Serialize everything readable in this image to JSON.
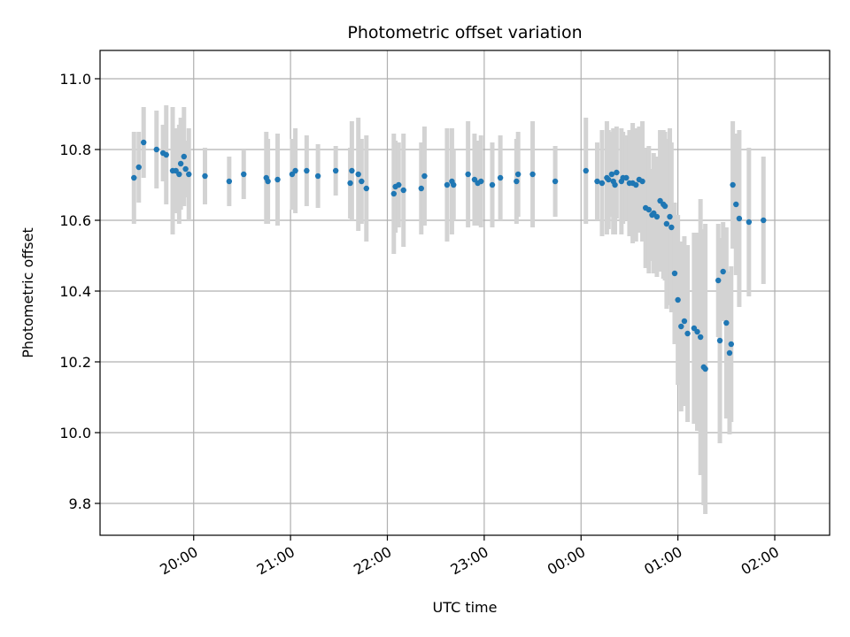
{
  "chart_data": {
    "type": "scatter",
    "title": "Photometric offset variation",
    "xlabel": "UTC time",
    "ylabel": "Photometric offset",
    "grid": true,
    "legend": "none",
    "x_axis_kind": "time",
    "xlim": [
      "19:02",
      "02:34"
    ],
    "ylim": [
      9.71,
      11.08
    ],
    "x_ticks": [
      "20:00",
      "21:00",
      "22:00",
      "23:00",
      "00:00",
      "01:00",
      "02:00"
    ],
    "y_ticks": [
      9.8,
      10.0,
      10.2,
      10.4,
      10.6,
      10.8,
      11.0
    ],
    "colors": {
      "points": "#1f77b4",
      "error_bars": "#d3d3d3"
    },
    "series": [
      {
        "x": [
          "19:23",
          "19:26",
          "19:29",
          "19:37",
          "19:41",
          "19:43",
          "19:47",
          "19:49",
          "19:51",
          "19:52",
          "19:54",
          "19:55",
          "19:57",
          "20:07",
          "20:22",
          "20:31",
          "20:45",
          "20:46",
          "20:52",
          "21:01",
          "21:03",
          "21:10",
          "21:17",
          "21:28",
          "21:37",
          "21:38",
          "21:42",
          "21:44",
          "21:47",
          "22:04",
          "22:05",
          "22:07",
          "22:10",
          "22:21",
          "22:23",
          "22:37",
          "22:40",
          "22:41",
          "22:50",
          "22:54",
          "22:56",
          "22:58",
          "23:05",
          "23:10",
          "23:20",
          "23:21",
          "23:30",
          "23:44",
          "00:03",
          "00:10",
          "00:13",
          "00:16",
          "00:17",
          "00:19",
          "00:20",
          "00:21",
          "00:22",
          "00:25",
          "00:26",
          "00:28",
          "00:30",
          "00:32",
          "00:34",
          "00:36",
          "00:38",
          "00:40",
          "00:42",
          "00:44",
          "00:45",
          "00:47",
          "00:49",
          "00:51",
          "00:52",
          "00:53",
          "00:55",
          "00:56",
          "00:58",
          "01:00",
          "01:02",
          "01:04",
          "01:06",
          "01:10",
          "01:12",
          "01:14",
          "01:16",
          "01:17",
          "01:25",
          "01:26",
          "01:28",
          "01:30",
          "01:32",
          "01:33",
          "01:34",
          "01:36",
          "01:38",
          "01:44",
          "01:53"
        ],
        "y": [
          10.72,
          10.75,
          10.82,
          10.8,
          10.79,
          10.785,
          10.74,
          10.74,
          10.73,
          10.76,
          10.78,
          10.745,
          10.73,
          10.725,
          10.71,
          10.73,
          10.72,
          10.71,
          10.715,
          10.73,
          10.74,
          10.74,
          10.725,
          10.74,
          10.705,
          10.74,
          10.73,
          10.71,
          10.69,
          10.675,
          10.695,
          10.7,
          10.685,
          10.69,
          10.725,
          10.7,
          10.71,
          10.7,
          10.73,
          10.715,
          10.705,
          10.71,
          10.7,
          10.72,
          10.71,
          10.73,
          10.73,
          10.71,
          10.74,
          10.71,
          10.705,
          10.72,
          10.715,
          10.73,
          10.71,
          10.7,
          10.735,
          10.71,
          10.72,
          10.72,
          10.705,
          10.705,
          10.7,
          10.715,
          10.71,
          10.635,
          10.63,
          10.615,
          10.62,
          10.61,
          10.655,
          10.645,
          10.64,
          10.59,
          10.61,
          10.58,
          10.45,
          10.375,
          10.3,
          10.315,
          10.28,
          10.295,
          10.285,
          10.27,
          10.185,
          10.18,
          10.43,
          10.26,
          10.455,
          10.31,
          10.225,
          10.25,
          10.7,
          10.645,
          10.605,
          10.595,
          10.6
        ],
        "err": [
          0.13,
          0.1,
          0.1,
          0.11,
          0.08,
          0.14,
          0.18,
          0.12,
          0.14,
          0.13,
          0.14,
          0.08,
          0.13,
          0.08,
          0.07,
          0.07,
          0.13,
          0.12,
          0.13,
          0.1,
          0.12,
          0.1,
          0.09,
          0.07,
          0.1,
          0.14,
          0.16,
          0.12,
          0.15,
          0.17,
          0.13,
          0.12,
          0.16,
          0.13,
          0.14,
          0.16,
          0.15,
          0.1,
          0.15,
          0.13,
          0.12,
          0.13,
          0.12,
          0.12,
          0.12,
          0.12,
          0.15,
          0.1,
          0.15,
          0.11,
          0.15,
          0.16,
          0.14,
          0.12,
          0.15,
          0.14,
          0.13,
          0.15,
          0.13,
          0.12,
          0.15,
          0.17,
          0.16,
          0.15,
          0.17,
          0.17,
          0.18,
          0.13,
          0.17,
          0.17,
          0.2,
          0.21,
          0.21,
          0.24,
          0.25,
          0.24,
          0.2,
          0.24,
          0.24,
          0.24,
          0.25,
          0.27,
          0.28,
          0.39,
          0.39,
          0.41,
          0.16,
          0.29,
          0.14,
          0.27,
          0.23,
          0.22,
          0.18,
          0.2,
          0.25,
          0.21,
          0.18
        ]
      }
    ]
  }
}
